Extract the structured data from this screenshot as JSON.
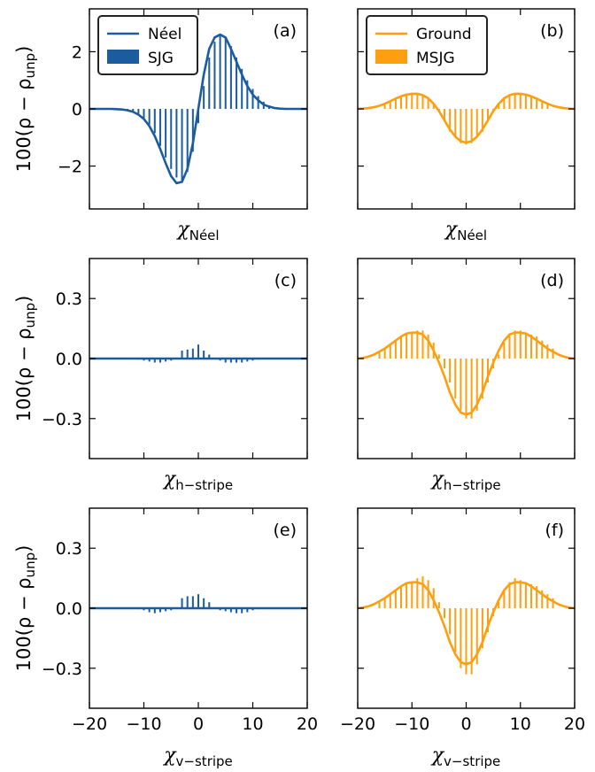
{
  "chart_data": [
    {
      "id": "a",
      "type": "line+bar",
      "panel_label": "(a)",
      "xlabel_main": "χ",
      "xlabel_sub": "Néel",
      "ylabel": "100(ρ − ρ",
      "ylabel_sub": "unp",
      "ylabel_close": ")",
      "xlim": [
        -20,
        20
      ],
      "ylim": [
        -3.5,
        3.5
      ],
      "xticks": [
        -20,
        -10,
        0,
        10,
        20
      ],
      "yticks": [
        -2,
        0,
        2
      ],
      "ytick_labels": [
        "−2",
        "0",
        "2"
      ],
      "color": "#1a5c9e",
      "legend": {
        "line_label": "Néel",
        "bar_label": "SJG",
        "placement": "top-left"
      },
      "curve": {
        "name": "Néel",
        "x": [
          -20,
          -19,
          -18,
          -17,
          -16,
          -15,
          -14,
          -13,
          -12,
          -11,
          -10,
          -9,
          -8,
          -7,
          -6,
          -5,
          -4,
          -3,
          -2,
          -1,
          0,
          1,
          2,
          3,
          4,
          5,
          6,
          7,
          8,
          9,
          10,
          11,
          12,
          13,
          14,
          15,
          16,
          17,
          18,
          19,
          20
        ],
        "y": [
          0,
          0,
          0,
          0,
          0,
          -0.01,
          -0.02,
          -0.05,
          -0.1,
          -0.2,
          -0.35,
          -0.6,
          -0.95,
          -1.4,
          -1.9,
          -2.35,
          -2.6,
          -2.55,
          -2.1,
          -1.2,
          0,
          1.2,
          2.1,
          2.5,
          2.6,
          2.5,
          2.1,
          1.65,
          1.2,
          0.8,
          0.5,
          0.3,
          0.15,
          0.08,
          0.03,
          0.01,
          0,
          0,
          0,
          0,
          0
        ]
      },
      "bars": {
        "name": "SJG",
        "x": [
          -13,
          -12,
          -11,
          -10,
          -9,
          -8,
          -7,
          -6,
          -5,
          -4,
          -3,
          -2,
          -1,
          0,
          1,
          2,
          3,
          4,
          5,
          6,
          7,
          8,
          9,
          10,
          11,
          12,
          13,
          14,
          15
        ],
        "y": [
          -0.05,
          -0.1,
          -0.2,
          -0.35,
          -0.55,
          -0.85,
          -1.3,
          -1.7,
          -2.1,
          -2.4,
          -2.5,
          -2.2,
          -1.5,
          -0.5,
          0.8,
          1.8,
          2.35,
          2.55,
          2.5,
          2.2,
          1.8,
          1.4,
          1.0,
          0.7,
          0.45,
          0.25,
          0.12,
          0.05,
          0.02
        ]
      }
    },
    {
      "id": "b",
      "type": "line+bar",
      "panel_label": "(b)",
      "xlabel_main": "χ",
      "xlabel_sub": "Néel",
      "xlim": [
        -20,
        20
      ],
      "ylim": [
        -3.5,
        3.5
      ],
      "xticks": [
        -20,
        -10,
        0,
        10,
        20
      ],
      "yticks": [
        -2,
        0,
        2
      ],
      "ytick_labels": [
        "",
        "",
        ""
      ],
      "color": "#ff9f10",
      "legend": {
        "line_label": "Ground",
        "bar_label": "MSJG",
        "placement": "top-left"
      },
      "curve": {
        "name": "Ground",
        "x": [
          -20,
          -19,
          -18,
          -17,
          -16,
          -15,
          -14,
          -13,
          -12,
          -11,
          -10,
          -9,
          -8,
          -7,
          -6,
          -5,
          -4,
          -3,
          -2,
          -1,
          0,
          1,
          2,
          3,
          4,
          5,
          6,
          7,
          8,
          9,
          10,
          11,
          12,
          13,
          14,
          15,
          16,
          17,
          18,
          19,
          20
        ],
        "y": [
          0,
          0.01,
          0.03,
          0.06,
          0.11,
          0.18,
          0.27,
          0.36,
          0.44,
          0.5,
          0.53,
          0.53,
          0.48,
          0.37,
          0.18,
          -0.08,
          -0.4,
          -0.72,
          -0.97,
          -1.13,
          -1.18,
          -1.13,
          -0.97,
          -0.72,
          -0.4,
          -0.08,
          0.18,
          0.37,
          0.48,
          0.53,
          0.53,
          0.5,
          0.44,
          0.36,
          0.27,
          0.18,
          0.11,
          0.06,
          0.03,
          0.01,
          0
        ]
      },
      "bars": {
        "name": "MSJG",
        "x": [
          -15,
          -14,
          -13,
          -12,
          -11,
          -10,
          -9,
          -8,
          -7,
          -6,
          -5,
          -4,
          -3,
          -2,
          -1,
          0,
          1,
          2,
          3,
          4,
          5,
          6,
          7,
          8,
          9,
          10,
          11,
          12,
          13,
          14,
          15
        ],
        "y": [
          0.15,
          0.25,
          0.35,
          0.45,
          0.5,
          0.55,
          0.55,
          0.5,
          0.4,
          0.2,
          -0.1,
          -0.45,
          -0.8,
          -1.0,
          -1.2,
          -1.25,
          -1.2,
          -1.0,
          -0.8,
          -0.45,
          -0.1,
          0.2,
          0.4,
          0.5,
          0.55,
          0.55,
          0.5,
          0.45,
          0.35,
          0.25,
          0.15
        ]
      }
    },
    {
      "id": "c",
      "type": "line+bar",
      "panel_label": "(c)",
      "xlabel_main": "χ",
      "xlabel_sub": "h−stripe",
      "ylabel": "100(ρ − ρ",
      "ylabel_sub": "unp",
      "ylabel_close": ")",
      "xlim": [
        -20,
        20
      ],
      "ylim": [
        -0.5,
        0.5
      ],
      "xticks": [
        -20,
        -10,
        0,
        10,
        20
      ],
      "yticks": [
        -0.3,
        0,
        0.3
      ],
      "ytick_labels": [
        "−0.3",
        "0.0",
        "0.3"
      ],
      "color": "#1a5c9e",
      "curve": {
        "name": "Néel",
        "x": [
          -20,
          20
        ],
        "y": [
          0,
          0
        ]
      },
      "bars": {
        "name": "SJG",
        "x": [
          -11,
          -10,
          -9,
          -8,
          -7,
          -6,
          -5,
          -4,
          -3,
          -2,
          -1,
          0,
          1,
          2,
          3,
          4,
          5,
          6,
          7,
          8,
          9,
          10,
          11
        ],
        "y": [
          -0.005,
          -0.01,
          -0.015,
          -0.02,
          -0.02,
          -0.015,
          -0.01,
          0.0,
          0.04,
          0.045,
          0.05,
          0.07,
          0.04,
          0.02,
          0.0,
          -0.01,
          -0.02,
          -0.02,
          -0.02,
          -0.02,
          -0.015,
          -0.01,
          -0.005
        ]
      }
    },
    {
      "id": "d",
      "type": "line+bar",
      "panel_label": "(d)",
      "xlabel_main": "χ",
      "xlabel_sub": "h−stripe",
      "xlim": [
        -20,
        20
      ],
      "ylim": [
        -0.5,
        0.5
      ],
      "xticks": [
        -20,
        -10,
        0,
        10,
        20
      ],
      "yticks": [
        -0.3,
        0,
        0.3
      ],
      "ytick_labels": [
        "",
        "",
        ""
      ],
      "color": "#ff9f10",
      "curve": {
        "name": "Ground",
        "x": [
          -20,
          -19,
          -18,
          -17,
          -16,
          -15,
          -14,
          -13,
          -12,
          -11,
          -10,
          -9,
          -8,
          -7,
          -6,
          -5,
          -4,
          -3,
          -2,
          -1,
          0,
          1,
          2,
          3,
          4,
          5,
          6,
          7,
          8,
          9,
          10,
          11,
          12,
          13,
          14,
          15,
          16,
          17,
          18,
          19,
          20
        ],
        "y": [
          0,
          0.003,
          0.01,
          0.02,
          0.035,
          0.05,
          0.07,
          0.09,
          0.11,
          0.125,
          0.13,
          0.13,
          0.12,
          0.09,
          0.04,
          -0.02,
          -0.09,
          -0.17,
          -0.23,
          -0.27,
          -0.28,
          -0.27,
          -0.23,
          -0.17,
          -0.09,
          -0.02,
          0.04,
          0.09,
          0.12,
          0.13,
          0.13,
          0.125,
          0.11,
          0.09,
          0.07,
          0.05,
          0.035,
          0.02,
          0.01,
          0.003,
          0
        ]
      },
      "bars": {
        "name": "MSJG",
        "x": [
          -16,
          -15,
          -14,
          -13,
          -12,
          -11,
          -10,
          -9,
          -8,
          -7,
          -6,
          -5,
          -4,
          -3,
          -2,
          -1,
          0,
          1,
          2,
          3,
          4,
          5,
          6,
          7,
          8,
          9,
          10,
          11,
          12,
          13,
          14,
          15,
          16
        ],
        "y": [
          0.03,
          0.05,
          0.07,
          0.09,
          0.11,
          0.12,
          0.13,
          0.14,
          0.14,
          0.12,
          0.08,
          0.02,
          -0.05,
          -0.12,
          -0.2,
          -0.26,
          -0.3,
          -0.3,
          -0.26,
          -0.2,
          -0.12,
          -0.05,
          0.02,
          0.08,
          0.12,
          0.14,
          0.14,
          0.13,
          0.12,
          0.11,
          0.09,
          0.07,
          0.05
        ]
      }
    },
    {
      "id": "e",
      "type": "line+bar",
      "panel_label": "(e)",
      "xlabel_main": "χ",
      "xlabel_sub": "v−stripe",
      "ylabel": "100(ρ − ρ",
      "ylabel_sub": "unp",
      "ylabel_close": ")",
      "xlim": [
        -20,
        20
      ],
      "ylim": [
        -0.5,
        0.5
      ],
      "xticks": [
        -20,
        -10,
        0,
        10,
        20
      ],
      "xtick_labels": [
        "−20",
        "−10",
        "0",
        "10",
        "20"
      ],
      "yticks": [
        -0.3,
        0,
        0.3
      ],
      "ytick_labels": [
        "−0.3",
        "0.0",
        "0.3"
      ],
      "color": "#1a5c9e",
      "curve": {
        "name": "Néel",
        "x": [
          -20,
          20
        ],
        "y": [
          0,
          0
        ]
      },
      "bars": {
        "name": "SJG",
        "x": [
          -11,
          -10,
          -9,
          -8,
          -7,
          -6,
          -5,
          -4,
          -3,
          -2,
          -1,
          0,
          1,
          2,
          3,
          4,
          5,
          6,
          7,
          8,
          9,
          10,
          11
        ],
        "y": [
          -0.005,
          -0.01,
          -0.02,
          -0.025,
          -0.02,
          -0.015,
          -0.01,
          0.0,
          0.05,
          0.06,
          0.06,
          0.07,
          0.05,
          0.03,
          0.0,
          -0.01,
          -0.015,
          -0.02,
          -0.025,
          -0.025,
          -0.02,
          -0.01,
          -0.005
        ]
      }
    },
    {
      "id": "f",
      "type": "line+bar",
      "panel_label": "(f)",
      "xlabel_main": "χ",
      "xlabel_sub": "v−stripe",
      "xlim": [
        -20,
        20
      ],
      "ylim": [
        -0.5,
        0.5
      ],
      "xticks": [
        -20,
        -10,
        0,
        10,
        20
      ],
      "xtick_labels": [
        "−20",
        "−10",
        "0",
        "10",
        "20"
      ],
      "yticks": [
        -0.3,
        0,
        0.3
      ],
      "ytick_labels": [
        "",
        "",
        ""
      ],
      "color": "#ff9f10",
      "curve": {
        "name": "Ground",
        "x": [
          -20,
          -19,
          -18,
          -17,
          -16,
          -15,
          -14,
          -13,
          -12,
          -11,
          -10,
          -9,
          -8,
          -7,
          -6,
          -5,
          -4,
          -3,
          -2,
          -1,
          0,
          1,
          2,
          3,
          4,
          5,
          6,
          7,
          8,
          9,
          10,
          11,
          12,
          13,
          14,
          15,
          16,
          17,
          18,
          19,
          20
        ],
        "y": [
          0,
          0.003,
          0.01,
          0.02,
          0.035,
          0.05,
          0.07,
          0.09,
          0.11,
          0.125,
          0.13,
          0.13,
          0.12,
          0.09,
          0.04,
          -0.02,
          -0.09,
          -0.17,
          -0.23,
          -0.27,
          -0.28,
          -0.27,
          -0.23,
          -0.17,
          -0.09,
          -0.02,
          0.04,
          0.09,
          0.12,
          0.13,
          0.13,
          0.125,
          0.11,
          0.09,
          0.07,
          0.05,
          0.035,
          0.02,
          0.01,
          0.003,
          0
        ]
      },
      "bars": {
        "name": "MSJG",
        "x": [
          -16,
          -15,
          -14,
          -13,
          -12,
          -11,
          -10,
          -9,
          -8,
          -7,
          -6,
          -5,
          -4,
          -3,
          -2,
          -1,
          0,
          1,
          2,
          3,
          4,
          5,
          6,
          7,
          8,
          9,
          10,
          11,
          12,
          13,
          14,
          15,
          16
        ],
        "y": [
          0.03,
          0.05,
          0.07,
          0.09,
          0.11,
          0.12,
          0.13,
          0.15,
          0.16,
          0.14,
          0.1,
          0.03,
          -0.05,
          -0.13,
          -0.22,
          -0.3,
          -0.33,
          -0.33,
          -0.28,
          -0.2,
          -0.12,
          -0.04,
          0.03,
          0.09,
          0.13,
          0.15,
          0.14,
          0.13,
          0.12,
          0.11,
          0.09,
          0.07,
          0.05
        ]
      }
    }
  ]
}
